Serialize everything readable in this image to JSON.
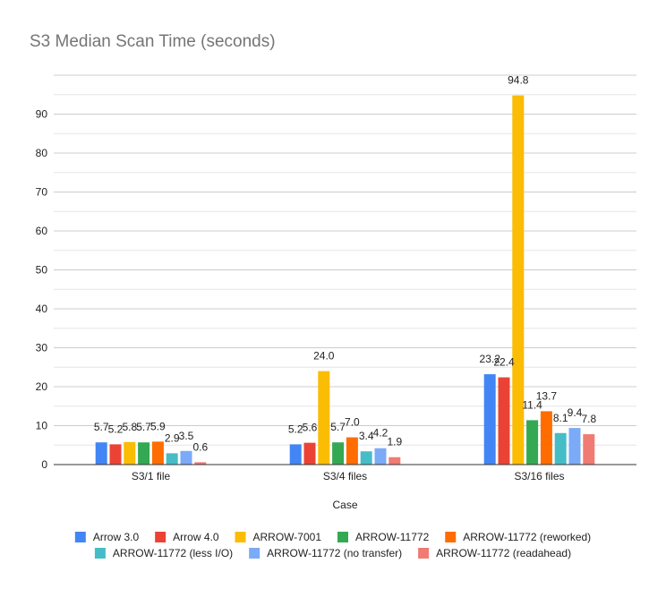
{
  "chart_data": {
    "type": "bar",
    "title": "S3 Median Scan Time (seconds)",
    "xlabel": "Case",
    "ylabel": "",
    "categories": [
      "S3/1 file",
      "S3/4 files",
      "S3/16 files"
    ],
    "ylim": [
      0,
      100
    ],
    "yticks": [
      0,
      10,
      20,
      30,
      40,
      50,
      60,
      70,
      80,
      90
    ],
    "grid": true,
    "legend_position": "bottom",
    "series": [
      {
        "name": "Arrow 3.0",
        "color": "#4285f4",
        "values": [
          5.7,
          5.2,
          23.2
        ],
        "labels": [
          "5.7",
          "5.2",
          "23.2"
        ]
      },
      {
        "name": "Arrow 4.0",
        "color": "#ea4335",
        "values": [
          5.2,
          5.6,
          22.4
        ],
        "labels": [
          "5.2",
          "5.6",
          "22.4"
        ]
      },
      {
        "name": "ARROW-7001",
        "color": "#fbbc04",
        "values": [
          5.8,
          24.0,
          94.8
        ],
        "labels": [
          "5.8",
          "24.0",
          "94.8"
        ]
      },
      {
        "name": "ARROW-11772",
        "color": "#34a853",
        "values": [
          5.7,
          5.7,
          11.4
        ],
        "labels": [
          "5.7",
          "5.7",
          "11.4"
        ]
      },
      {
        "name": "ARROW-11772 (reworked)",
        "color": "#ff6d01",
        "values": [
          5.9,
          7.0,
          13.7
        ],
        "labels": [
          "5.9",
          "7.0",
          "13.7"
        ]
      },
      {
        "name": "ARROW-11772 (less I/O)",
        "color": "#46bdc6",
        "values": [
          2.9,
          3.4,
          8.1
        ],
        "labels": [
          "2.9",
          "3.4",
          "8.1"
        ]
      },
      {
        "name": "ARROW-11772 (no transfer)",
        "color": "#7baaf7",
        "values": [
          3.5,
          4.2,
          9.4
        ],
        "labels": [
          "3.5",
          "4.2",
          "9.4"
        ]
      },
      {
        "name": "ARROW-11772 (readahead)",
        "color": "#f07b72",
        "values": [
          0.6,
          1.9,
          7.8
        ],
        "labels": [
          "0.6",
          "1.9",
          "7.8"
        ]
      }
    ]
  }
}
